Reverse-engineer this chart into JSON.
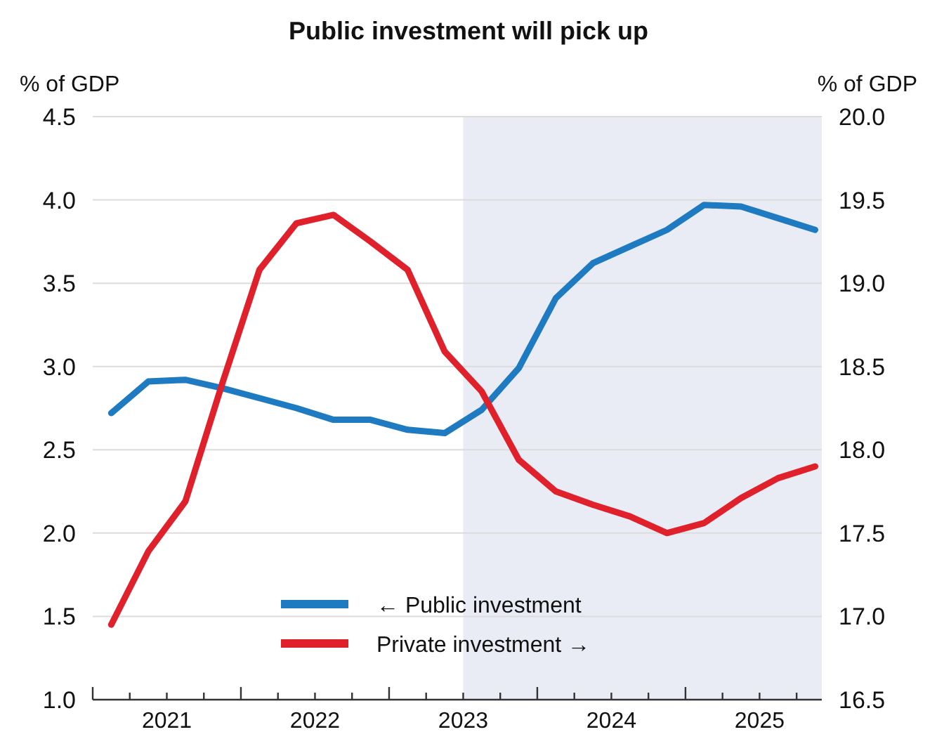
{
  "chart_data": {
    "type": "line",
    "title": "Public investment will pick up",
    "ylabel": "% of GDP",
    "y2label": "% of GDP",
    "x": [
      2021.125,
      2021.375,
      2021.625,
      2021.875,
      2022.125,
      2022.375,
      2022.625,
      2022.875,
      2023.125,
      2023.375,
      2023.625,
      2023.875,
      2024.125,
      2024.375,
      2024.625,
      2024.875,
      2025.125,
      2025.375,
      2025.625,
      2025.875
    ],
    "series": [
      {
        "name": "← Public investment",
        "color": "#1f7bc1",
        "values": [
          2.72,
          2.91,
          2.92,
          2.87,
          2.81,
          2.75,
          2.68,
          2.68,
          2.62,
          2.6,
          2.74,
          2.99,
          3.41,
          3.62,
          3.72,
          3.82,
          3.97,
          3.96,
          3.89,
          3.82
        ]
      },
      {
        "name": "Private investment →",
        "color": "#e0202a",
        "axis": "y2",
        "values": [
          16.95,
          17.39,
          17.69,
          18.4,
          19.08,
          19.36,
          19.41,
          19.25,
          19.08,
          18.59,
          18.35,
          17.94,
          17.75,
          17.67,
          17.6,
          17.5,
          17.56,
          17.71,
          17.83,
          17.9
        ]
      }
    ],
    "xlim": [
      2021,
      2025.92
    ],
    "xticks": [
      {
        "value": 2021,
        "label": null
      },
      {
        "value": 2021.25,
        "label": null
      },
      {
        "value": 2021.5,
        "label": "2021"
      },
      {
        "value": 2021.75,
        "label": null
      },
      {
        "value": 2022,
        "label": null
      },
      {
        "value": 2022.25,
        "label": null
      },
      {
        "value": 2022.5,
        "label": "2022"
      },
      {
        "value": 2022.75,
        "label": null
      },
      {
        "value": 2023,
        "label": null
      },
      {
        "value": 2023.25,
        "label": null
      },
      {
        "value": 2023.5,
        "label": "2023"
      },
      {
        "value": 2023.75,
        "label": null
      },
      {
        "value": 2024,
        "label": null
      },
      {
        "value": 2024.25,
        "label": null
      },
      {
        "value": 2024.5,
        "label": "2024"
      },
      {
        "value": 2024.75,
        "label": null
      },
      {
        "value": 2025,
        "label": null
      },
      {
        "value": 2025.25,
        "label": null
      },
      {
        "value": 2025.5,
        "label": "2025"
      },
      {
        "value": 2025.75,
        "label": null
      }
    ],
    "ylim": [
      1.0,
      4.5
    ],
    "yticks": [
      {
        "value": 1.0,
        "label": "1.0"
      },
      {
        "value": 1.5,
        "label": "1.5"
      },
      {
        "value": 2.0,
        "label": "2.0"
      },
      {
        "value": 2.5,
        "label": "2.5"
      },
      {
        "value": 3.0,
        "label": "3.0"
      },
      {
        "value": 3.5,
        "label": "3.5"
      },
      {
        "value": 4.0,
        "label": "4.0"
      },
      {
        "value": 4.5,
        "label": "4.5"
      }
    ],
    "y2lim": [
      16.5,
      20.0
    ],
    "y2ticks": [
      {
        "value": 16.5,
        "label": "16.5"
      },
      {
        "value": 17.0,
        "label": "17.0"
      },
      {
        "value": 17.5,
        "label": "17.5"
      },
      {
        "value": 18.0,
        "label": "18.0"
      },
      {
        "value": 18.5,
        "label": "18.5"
      },
      {
        "value": 19.0,
        "label": "19.0"
      },
      {
        "value": 19.5,
        "label": "19.5"
      },
      {
        "value": 20.0,
        "label": "20.0"
      }
    ],
    "bands": [
      {
        "axis": "x",
        "from": 2023.5,
        "to": 2025.92,
        "color": "#e9ecf5"
      }
    ],
    "grid": "y",
    "legend": "bottom",
    "marker": "none",
    "line_style": "solid"
  }
}
